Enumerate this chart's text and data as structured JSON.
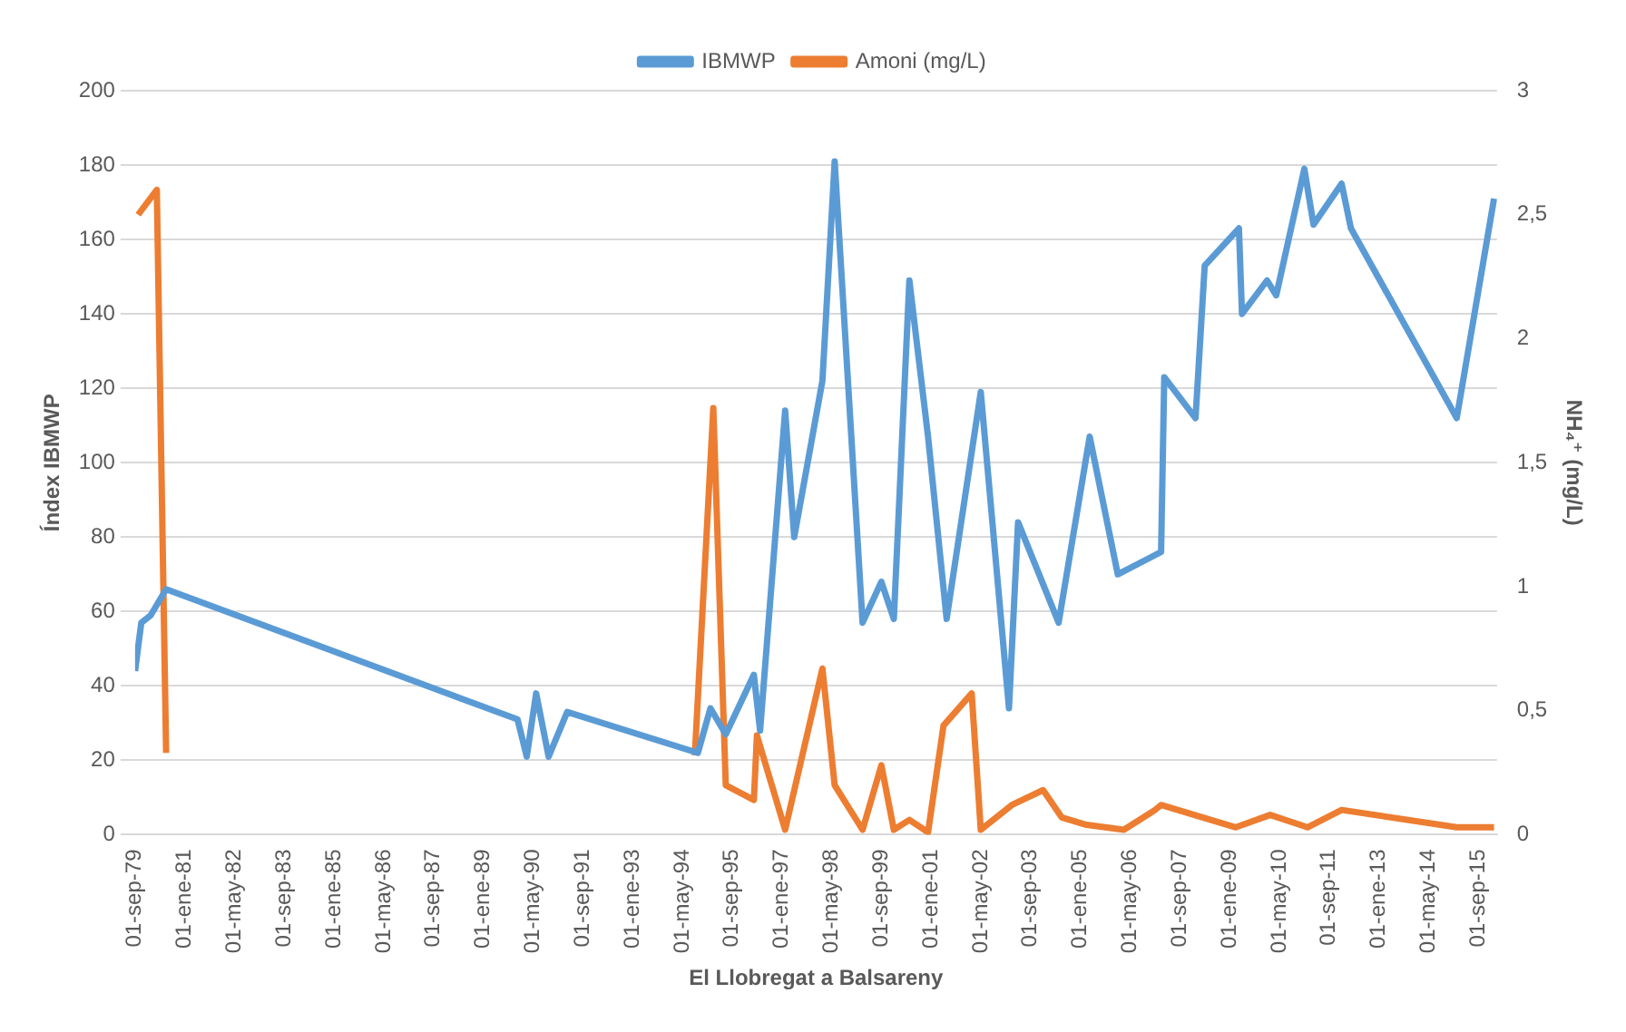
{
  "chart_data": {
    "type": "line",
    "xlabel": "El Llobregat a Balsareny",
    "ylabel": "Índex IBMWP",
    "y2label": "NH₄⁺ (mg/L)",
    "legend": "top",
    "grid": "y",
    "line_style": "solid",
    "marker": "none",
    "xlim": [
      "1979-09-01",
      "2016-03-01"
    ],
    "xticks": [
      {
        "value": "1979-09-01",
        "label": "01-sep-79"
      },
      {
        "value": "1981-01-01",
        "label": "01-ene-81"
      },
      {
        "value": "1982-05-01",
        "label": "01-may-82"
      },
      {
        "value": "1983-09-01",
        "label": "01-sep-83"
      },
      {
        "value": "1985-01-01",
        "label": "01-ene-85"
      },
      {
        "value": "1986-05-01",
        "label": "01-may-86"
      },
      {
        "value": "1987-09-01",
        "label": "01-sep-87"
      },
      {
        "value": "1989-01-01",
        "label": "01-ene-89"
      },
      {
        "value": "1990-05-01",
        "label": "01-may-90"
      },
      {
        "value": "1991-09-01",
        "label": "01-sep-91"
      },
      {
        "value": "1993-01-01",
        "label": "01-ene-93"
      },
      {
        "value": "1994-05-01",
        "label": "01-may-94"
      },
      {
        "value": "1995-09-01",
        "label": "01-sep-95"
      },
      {
        "value": "1997-01-01",
        "label": "01-ene-97"
      },
      {
        "value": "1998-05-01",
        "label": "01-may-98"
      },
      {
        "value": "1999-09-01",
        "label": "01-sep-99"
      },
      {
        "value": "2001-01-01",
        "label": "01-ene-01"
      },
      {
        "value": "2002-05-01",
        "label": "01-may-02"
      },
      {
        "value": "2003-09-01",
        "label": "01-sep-03"
      },
      {
        "value": "2005-01-01",
        "label": "01-ene-05"
      },
      {
        "value": "2006-05-01",
        "label": "01-may-06"
      },
      {
        "value": "2007-09-01",
        "label": "01-sep-07"
      },
      {
        "value": "2009-01-01",
        "label": "01-ene-09"
      },
      {
        "value": "2010-05-01",
        "label": "01-may-10"
      },
      {
        "value": "2011-09-01",
        "label": "01-sep-11"
      },
      {
        "value": "2013-01-01",
        "label": "01-ene-13"
      },
      {
        "value": "2014-05-01",
        "label": "01-may-14"
      },
      {
        "value": "2015-09-01",
        "label": "01-sep-15"
      }
    ],
    "ylim": [
      0,
      200
    ],
    "yticks": [
      0,
      20,
      40,
      60,
      80,
      100,
      120,
      140,
      160,
      180,
      200
    ],
    "y2lim": [
      0,
      3
    ],
    "y2ticks": [
      0,
      {
        "value": 0.5,
        "label": "0,5"
      },
      1,
      {
        "value": 1.5,
        "label": "1,5"
      },
      2,
      {
        "value": 2.5,
        "label": "2,5"
      },
      3
    ],
    "series": [
      {
        "name": "IBMWP",
        "color": "#5b9bd5",
        "x": [
          "1979-09",
          "1979-11",
          "1980-02",
          "1980-07",
          "1989-12",
          "1990-03",
          "1990-06",
          "1990-10",
          "1991-04",
          "1994-10",
          "1995-02",
          "1995-07",
          "1996-04",
          "1996-06",
          "1997-02",
          "1997-05",
          "1998-02",
          "1998-06",
          "1999-03",
          "1999-09",
          "2000-01",
          "2000-06",
          "2000-12",
          "2001-06",
          "2002-05",
          "2003-02",
          "2003-05",
          "2004-06",
          "2005-04",
          "2006-01",
          "2007-03",
          "2007-04",
          "2008-02",
          "2008-05",
          "2009-04",
          "2009-05",
          "2010-01",
          "2010-04",
          "2011-01",
          "2011-04",
          "2012-01",
          "2012-04",
          "2015-02",
          "2016-02"
        ],
        "values": [
          44,
          57,
          59,
          66,
          31,
          21,
          38,
          21,
          33,
          22,
          34,
          27,
          43,
          28,
          114,
          80,
          122,
          181,
          57,
          68,
          58,
          149,
          107,
          58,
          119,
          34,
          84,
          57,
          107,
          70,
          76,
          123,
          112,
          153,
          163,
          140,
          149,
          145,
          179,
          164,
          175,
          163,
          112,
          171
        ]
      },
      {
        "name": "Amoni (mg/L)",
        "color": "#ed7d31",
        "axis": "y2",
        "x": [
          "1979-10",
          "1980-04",
          "1980-07",
          "1987-06",
          "1994-09",
          "1995-03",
          "1995-07",
          "1996-04",
          "1996-05",
          "1997-02",
          "1998-02",
          "1998-06",
          "1999-03",
          "1999-09",
          "2000-01",
          "2000-06",
          "2000-12",
          "2001-05",
          "2002-02",
          "2002-05",
          "2003-03",
          "2004-01",
          "2004-07",
          "2005-03",
          "2006-03",
          "2007-01",
          "2007-03",
          "2009-03",
          "2010-02",
          "2011-02",
          "2012-01",
          "2015-02",
          "2016-02"
        ],
        "values": [
          2.5,
          2.6,
          0.33,
          null,
          0.32,
          1.72,
          0.2,
          0.14,
          0.4,
          0.02,
          0.67,
          0.2,
          0.02,
          0.28,
          0.02,
          0.06,
          0.01,
          0.44,
          0.57,
          0.02,
          0.12,
          0.18,
          0.07,
          0.04,
          0.02,
          0.1,
          0.12,
          0.03,
          0.08,
          0.03,
          0.1,
          0.03,
          0.03
        ]
      }
    ]
  }
}
